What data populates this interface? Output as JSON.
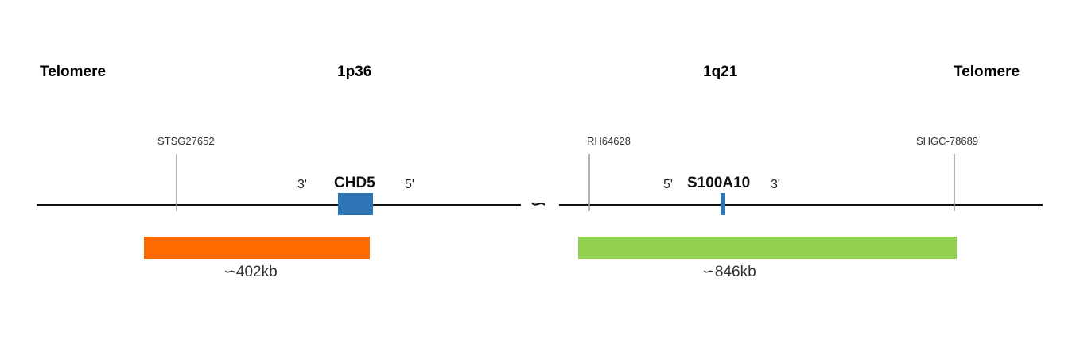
{
  "regions": {
    "left_telomere": "Telomere",
    "p_band": "1p36",
    "q_band": "1q21",
    "right_telomere": "Telomere"
  },
  "markers": {
    "stsg": "STSG27652",
    "rh": "RH64628",
    "shgc": "SHGC-78689"
  },
  "genes": {
    "chd5": {
      "name": "CHD5",
      "left_end": "3'",
      "right_end": "5'",
      "color": "#2E75B6"
    },
    "s100a10": {
      "name": "S100A10",
      "left_end": "5'",
      "right_end": "3'",
      "color": "#2E75B6"
    }
  },
  "segments": {
    "left": {
      "size": "∽402kb",
      "color": "#FF6A00"
    },
    "right": {
      "size": "∽846kb",
      "color": "#92D050"
    }
  },
  "break_symbol": "∽"
}
